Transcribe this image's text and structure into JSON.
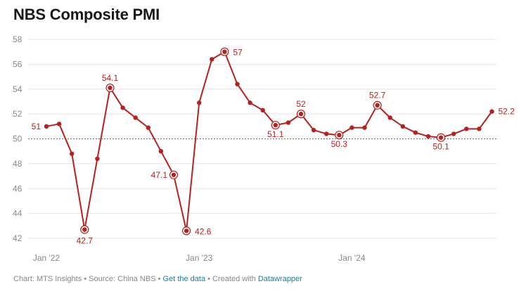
{
  "title": "NBS Composite PMI",
  "footer": {
    "chart_prefix": "Chart: MTS Insights",
    "sep1": " • ",
    "source": "Source: China NBS",
    "sep2": " • ",
    "get_data": "Get the data",
    "sep3": " • ",
    "created_with": "Created with ",
    "datawrapper": "Datawrapper"
  },
  "colors": {
    "line": "#b5211f",
    "reference": "#d9403e",
    "grid": "#e4e4e4",
    "axis_text": "#888888",
    "link": "#1d81a2"
  },
  "chart_data": {
    "type": "line",
    "title": "NBS Composite PMI",
    "x": [
      "Jan '22",
      "Feb '22",
      "Mar '22",
      "Apr '22",
      "May '22",
      "Jun '22",
      "Jul '22",
      "Aug '22",
      "Sep '22",
      "Oct '22",
      "Nov '22",
      "Dec '22",
      "Jan '23",
      "Feb '23",
      "Mar '23",
      "Apr '23",
      "May '23",
      "Jun '23",
      "Jul '23",
      "Aug '23",
      "Sep '23",
      "Oct '23",
      "Nov '23",
      "Dec '23",
      "Jan '24",
      "Feb '24",
      "Mar '24",
      "Apr '24",
      "May '24",
      "Jun '24",
      "Jul '24",
      "Aug '24",
      "Sep '24",
      "Oct '24",
      "Nov '24",
      "Dec '24"
    ],
    "x_ticks": [
      "Jan '22",
      "Jan '23",
      "Jan '24"
    ],
    "series": [
      {
        "values": [
          51.0,
          51.2,
          48.8,
          42.7,
          48.4,
          54.1,
          52.5,
          51.7,
          50.9,
          49.0,
          47.1,
          42.6,
          52.9,
          56.4,
          57.0,
          54.4,
          52.9,
          52.3,
          51.1,
          51.3,
          52.0,
          50.7,
          50.4,
          50.3,
          50.9,
          50.9,
          52.7,
          51.7,
          51.0,
          50.5,
          50.2,
          50.1,
          50.4,
          50.8,
          50.8,
          52.2
        ]
      }
    ],
    "yticks": [
      42,
      44,
      46,
      48,
      50,
      52,
      54,
      56,
      58
    ],
    "ylim": [
      42,
      58
    ],
    "reference_line": 50,
    "grid": true,
    "annotations": [
      {
        "index": 0,
        "label": "51",
        "highlight": false
      },
      {
        "index": 3,
        "label": "42.7",
        "highlight": true
      },
      {
        "index": 5,
        "label": "54.1",
        "highlight": true
      },
      {
        "index": 10,
        "label": "47.1",
        "highlight": true
      },
      {
        "index": 11,
        "label": "42.6",
        "highlight": true
      },
      {
        "index": 14,
        "label": "57",
        "highlight": true
      },
      {
        "index": 18,
        "label": "51.1",
        "highlight": true
      },
      {
        "index": 20,
        "label": "52",
        "highlight": true
      },
      {
        "index": 23,
        "label": "50.3",
        "highlight": true
      },
      {
        "index": 26,
        "label": "52.7",
        "highlight": true
      },
      {
        "index": 31,
        "label": "50.1",
        "highlight": true
      },
      {
        "index": 35,
        "label": "52.2",
        "highlight": false
      }
    ]
  }
}
